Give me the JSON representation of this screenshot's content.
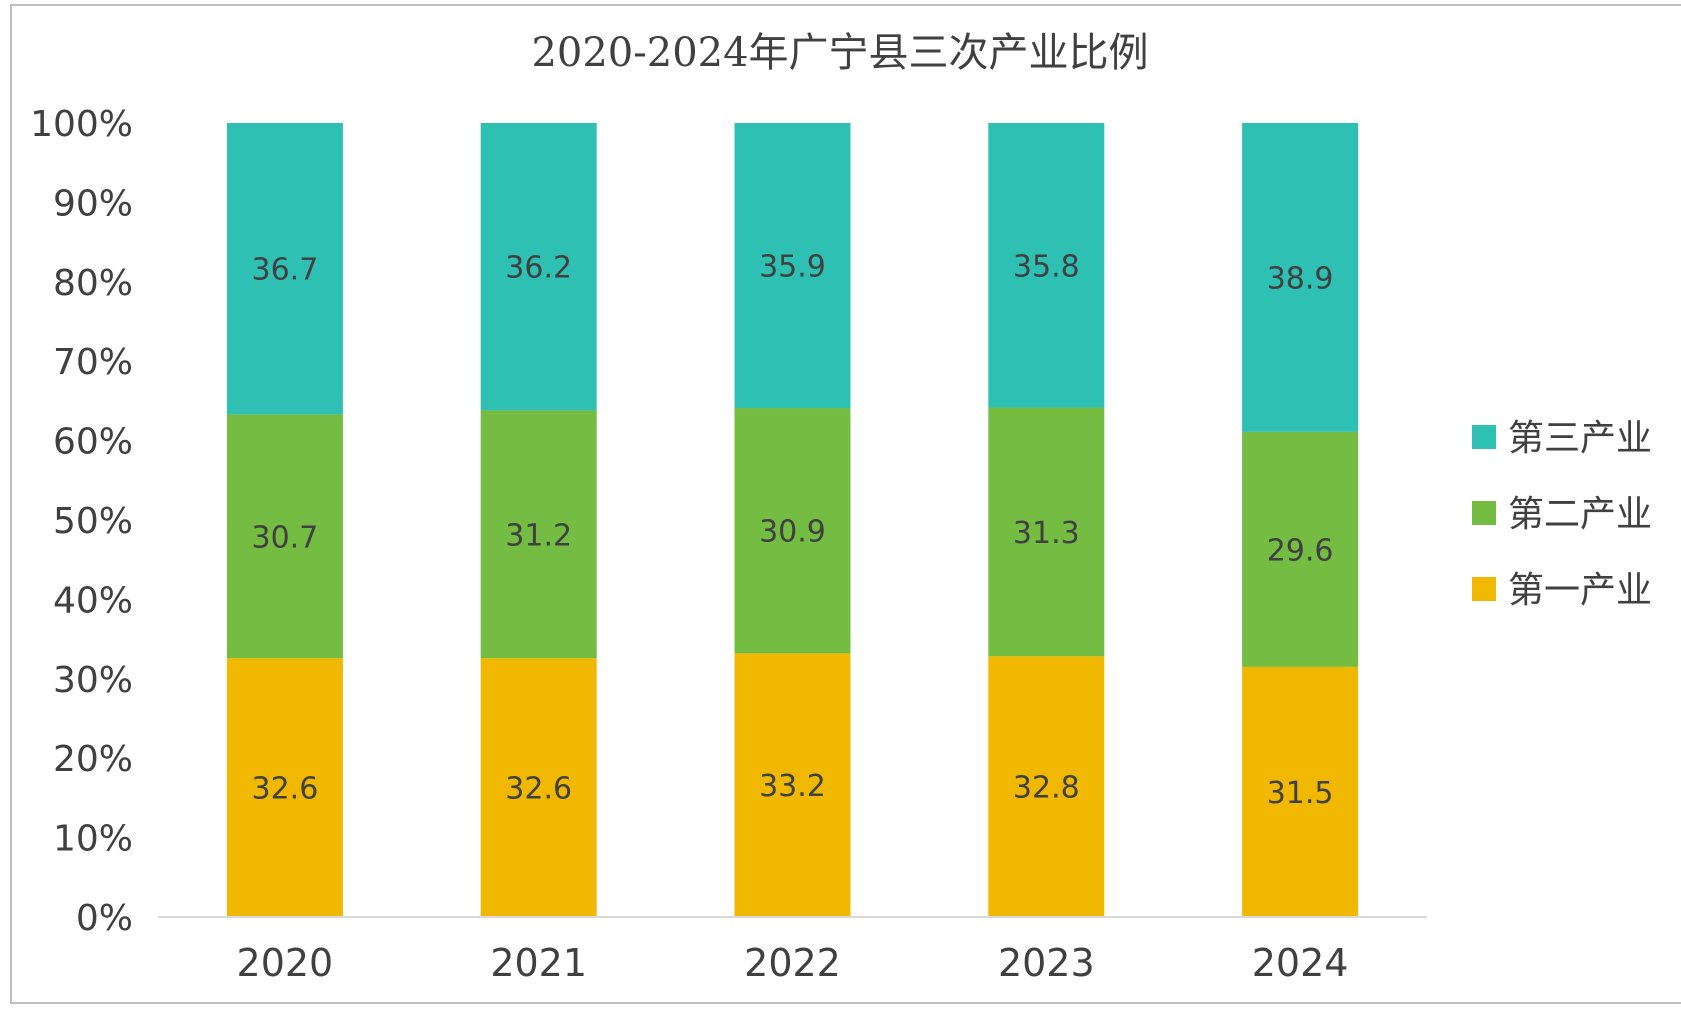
{
  "chart_data": {
    "type": "bar",
    "stacked": "percent",
    "title": "2020-2024年广宁县三次产业比例",
    "categories": [
      "2020",
      "2021",
      "2022",
      "2023",
      "2024"
    ],
    "series": [
      {
        "name": "第一产业",
        "values": [
          32.6,
          32.6,
          33.2,
          32.8,
          31.5
        ],
        "color": "#f0b800"
      },
      {
        "name": "第二产业",
        "values": [
          30.7,
          31.2,
          30.9,
          31.3,
          29.6
        ],
        "color": "#74bd42"
      },
      {
        "name": "第三产业",
        "values": [
          36.7,
          36.2,
          35.9,
          35.8,
          38.9
        ],
        "color": "#2fc0b4"
      }
    ],
    "yticks": [
      "0%",
      "10%",
      "20%",
      "30%",
      "40%",
      "50%",
      "60%",
      "70%",
      "80%",
      "90%",
      "100%"
    ],
    "ylim": [
      0,
      100
    ],
    "grid": false,
    "legend_position": "right",
    "legend_order": [
      "第三产业",
      "第二产业",
      "第一产业"
    ]
  }
}
